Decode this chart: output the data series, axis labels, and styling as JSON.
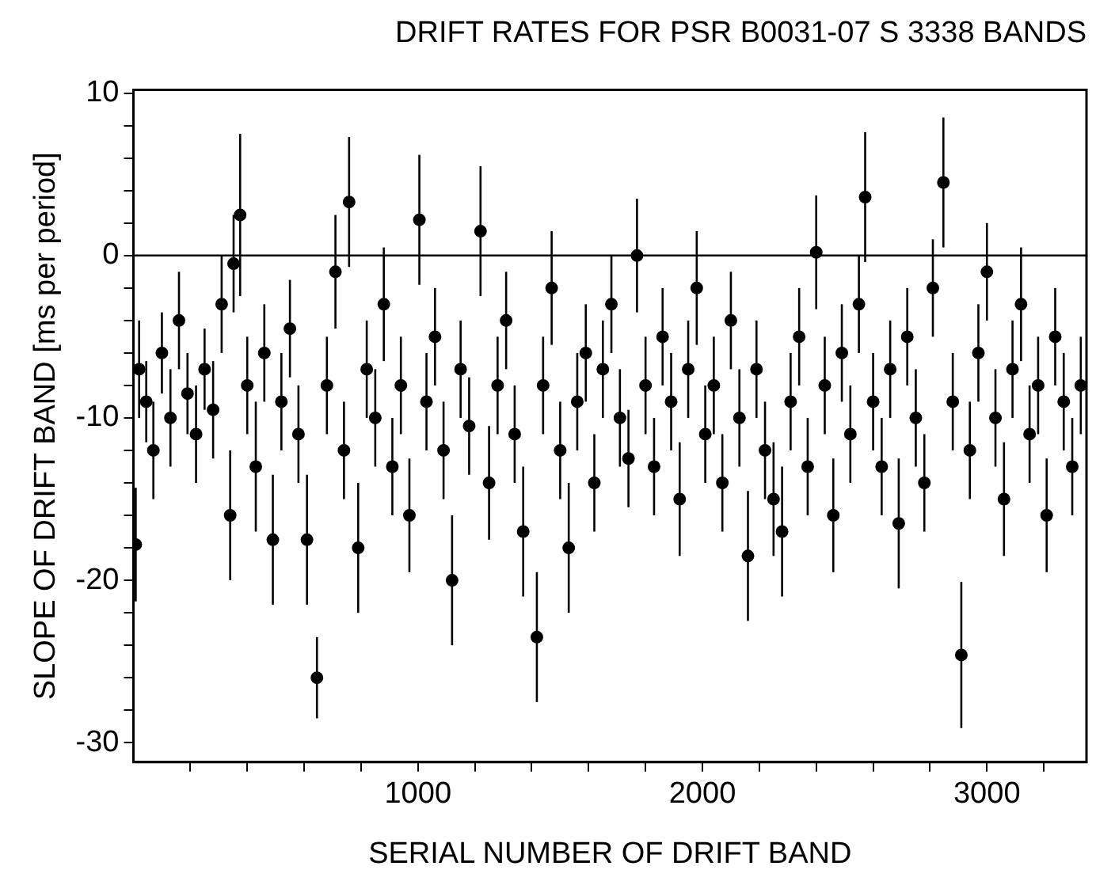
{
  "chart_data": {
    "type": "scatter",
    "title": "DRIFT RATES FOR PSR B0031-07 S 3338 BANDS",
    "xlabel": "SERIAL NUMBER OF DRIFT BAND",
    "ylabel": "SLOPE OF DRIFT BAND [ms per period]",
    "xlim": [
      0,
      3350
    ],
    "ylim": [
      -31.2,
      10.2
    ],
    "xticks": [
      {
        "value": 200,
        "label": null
      },
      {
        "value": 400,
        "label": null
      },
      {
        "value": 600,
        "label": null
      },
      {
        "value": 800,
        "label": null
      },
      1000,
      {
        "value": 1200,
        "label": null
      },
      {
        "value": 1400,
        "label": null
      },
      {
        "value": 1600,
        "label": null
      },
      {
        "value": 1800,
        "label": null
      },
      2000,
      {
        "value": 2200,
        "label": null
      },
      {
        "value": 2400,
        "label": null
      },
      {
        "value": 2600,
        "label": null
      },
      {
        "value": 2800,
        "label": null
      },
      3000,
      {
        "value": 3200,
        "label": null
      }
    ],
    "yticks": [
      -30,
      {
        "value": -28,
        "label": null
      },
      {
        "value": -26,
        "label": null
      },
      {
        "value": -24,
        "label": null
      },
      {
        "value": -22,
        "label": null
      },
      -20,
      {
        "value": -18,
        "label": null
      },
      {
        "value": -16,
        "label": null
      },
      {
        "value": -14,
        "label": null
      },
      {
        "value": -12,
        "label": null
      },
      -10,
      {
        "value": -8,
        "label": null
      },
      {
        "value": -6,
        "label": null
      },
      {
        "value": -4,
        "label": null
      },
      {
        "value": -2,
        "label": null
      },
      0,
      {
        "value": 2,
        "label": null
      },
      {
        "value": 4,
        "label": null
      },
      {
        "value": 6,
        "label": null
      },
      {
        "value": 8,
        "label": null
      },
      10
    ],
    "marker": "circle",
    "legend": false,
    "ref_lines": [
      {
        "axis": "y",
        "value": 0,
        "color": "#000000"
      }
    ],
    "series": [
      {
        "color": "#000000",
        "x": [
          8,
          20,
          45,
          70,
          100,
          130,
          160,
          190,
          220,
          250,
          280,
          310,
          340,
          352,
          375,
          400,
          430,
          460,
          490,
          520,
          550,
          580,
          610,
          645,
          680,
          710,
          740,
          758,
          790,
          820,
          850,
          880,
          910,
          940,
          970,
          1005,
          1030,
          1060,
          1090,
          1120,
          1150,
          1180,
          1220,
          1250,
          1280,
          1310,
          1340,
          1370,
          1418,
          1440,
          1470,
          1500,
          1530,
          1560,
          1590,
          1620,
          1650,
          1680,
          1710,
          1740,
          1770,
          1800,
          1830,
          1860,
          1890,
          1920,
          1950,
          1980,
          2010,
          2040,
          2070,
          2100,
          2130,
          2160,
          2190,
          2220,
          2250,
          2280,
          2310,
          2340,
          2370,
          2400,
          2430,
          2460,
          2490,
          2520,
          2550,
          2572,
          2600,
          2630,
          2660,
          2690,
          2720,
          2750,
          2780,
          2810,
          2847,
          2880,
          2910,
          2940,
          2970,
          3000,
          3030,
          3060,
          3090,
          3120,
          3150,
          3180,
          3210,
          3240,
          3270,
          3300,
          3330
        ],
        "values": [
          -17.8,
          -7,
          -9,
          -12,
          -6,
          -10,
          -4,
          -8.5,
          -11,
          -7,
          -9.5,
          -3,
          -16,
          -0.5,
          2.5,
          -8,
          -13,
          -6,
          -17.5,
          -9,
          -4.5,
          -11,
          -17.5,
          -26,
          -8,
          -1,
          -12,
          3.3,
          -18,
          -7,
          -10,
          -3,
          -13,
          -8,
          -16,
          2.2,
          -9,
          -5,
          -12,
          -20,
          -7,
          -10.5,
          1.5,
          -14,
          -8,
          -4,
          -11,
          -17,
          -23.5,
          -8,
          -2,
          -12,
          -18,
          -9,
          -6,
          -14,
          -7,
          -3,
          -10,
          -12.5,
          0,
          -8,
          -13,
          -5,
          -9,
          -15,
          -7,
          -2,
          -11,
          -8,
          -14,
          -4,
          -10,
          -18.5,
          -7,
          -12,
          -15,
          -17,
          -9,
          -5,
          -13,
          0.2,
          -8,
          -16,
          -6,
          -11,
          -3,
          3.6,
          -9,
          -13,
          -7,
          -16.5,
          -5,
          -10,
          -14,
          -2,
          4.5,
          -9,
          -24.6,
          -12,
          -6,
          -1,
          -10,
          -15,
          -7,
          -3,
          -11,
          -8,
          -16,
          -5,
          -9,
          -13,
          -8
        ],
        "errors": [
          3.5,
          3,
          2.5,
          3,
          2.5,
          3,
          3,
          2.5,
          3,
          2.5,
          3,
          3,
          4,
          3,
          5,
          3,
          4,
          3,
          4,
          3,
          3,
          3,
          4,
          2.5,
          3,
          3.5,
          3,
          4,
          4,
          3,
          3,
          3.5,
          3,
          3,
          3.5,
          4,
          3,
          3,
          3,
          4,
          3,
          3,
          4,
          3.5,
          3,
          3,
          3,
          4,
          4,
          3,
          3.5,
          3,
          4,
          3,
          3,
          3,
          3,
          3,
          3,
          3,
          3.5,
          3,
          3,
          3,
          3,
          3.5,
          3,
          3.5,
          3,
          3,
          3,
          3,
          3,
          4,
          3,
          3,
          3.5,
          4,
          3,
          3,
          3,
          3.5,
          3,
          3.5,
          3,
          3,
          3,
          4,
          3,
          3,
          3,
          4,
          3,
          3,
          3,
          3,
          4,
          3,
          4.5,
          3,
          3,
          3,
          3,
          3.5,
          3,
          3.5,
          3,
          3,
          3.5,
          3,
          3,
          3,
          3
        ]
      }
    ]
  }
}
